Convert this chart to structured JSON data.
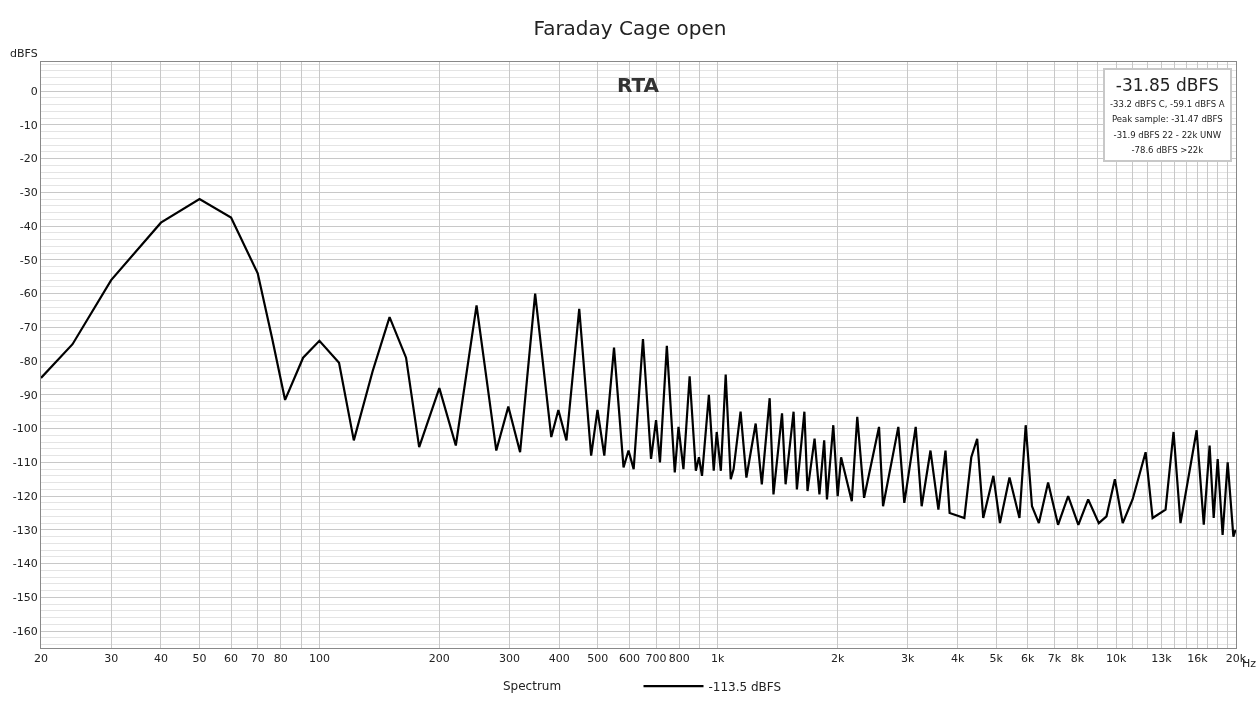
{
  "chart_data": {
    "type": "line",
    "title": "Faraday Cage open",
    "ylabel": "dBFS",
    "annotations": [
      "RTA",
      "-31.85 dBFS",
      "-33.2 dBFS C, -59.1 dBFS A",
      "Peak sample: -31.47 dBFS",
      "-31.9 dBFS 22 - 22k UNW",
      "-78.6 dBFS >22k",
      "Spectrum"
    ],
    "log": "x",
    "grid": true,
    "legend": "bottom",
    "marker": "none",
    "line_style": "solid",
    "xlim": [
      20,
      20000
    ],
    "xticks": [
      20,
      30,
      40,
      50,
      60,
      70,
      80,
      {
        "value": 90,
        "label": null
      },
      100,
      200,
      300,
      400,
      500,
      600,
      700,
      800,
      {
        "value": 900,
        "label": null
      },
      {
        "value": 1000,
        "label": "1k"
      },
      {
        "value": 2000,
        "label": "2k"
      },
      {
        "value": 3000,
        "label": "3k"
      },
      {
        "value": 4000,
        "label": "4k"
      },
      {
        "value": 5000,
        "label": "5k"
      },
      {
        "value": 6000,
        "label": "6k"
      },
      {
        "value": 7000,
        "label": "7k"
      },
      {
        "value": 8000,
        "label": "8k"
      },
      {
        "value": 9000,
        "label": null
      },
      {
        "value": 10000,
        "label": "10k"
      },
      {
        "value": 11000,
        "label": null
      },
      {
        "value": 12000,
        "label": null
      },
      {
        "value": 13000,
        "label": "13k"
      },
      {
        "value": 14000,
        "label": null
      },
      {
        "value": 15000,
        "label": null
      },
      {
        "value": 16000,
        "label": "16k"
      },
      {
        "value": 17000,
        "label": null
      },
      {
        "value": 18000,
        "label": null
      },
      {
        "value": 19000,
        "label": null
      },
      {
        "value": 20000,
        "label": "20k"
      }
    ],
    "xlabel": "Hz",
    "ylim": [
      -165,
      8.6
    ],
    "yticks": [
      0,
      -10,
      -20,
      -30,
      -40,
      -50,
      -60,
      -70,
      -80,
      -90,
      -100,
      -110,
      -120,
      -130,
      -140,
      -150,
      -160
    ],
    "series": [
      {
        "name": "-113.5 dBFS",
        "color": "#000000",
        "x": [
          20,
          24,
          30,
          40,
          50,
          60,
          70,
          76,
          82,
          91,
          100,
          112,
          122,
          136,
          150,
          165,
          178,
          200,
          220,
          248,
          278,
          298,
          319,
          348,
          382,
          398,
          417,
          449,
          481,
          499,
          519,
          549,
          580,
          597,
          615,
          649,
          680,
          700,
          716,
          745,
          780,
          797,
          820,
          850,
          881,
          897,
          913,
          950,
          977,
          994,
          1018,
          1047,
          1078,
          1096,
          1141,
          1180,
          1245,
          1290,
          1350,
          1380,
          1450,
          1480,
          1550,
          1580,
          1650,
          1680,
          1750,
          1800,
          1850,
          1880,
          1950,
          2000,
          2040,
          2170,
          2240,
          2330,
          2540,
          2600,
          2840,
          2940,
          3140,
          3250,
          3420,
          3580,
          3730,
          3820,
          4160,
          4330,
          4480,
          4640,
          4920,
          5110,
          5400,
          5720,
          5930,
          6150,
          6400,
          6750,
          7150,
          7580,
          8040,
          8510,
          9050,
          9460,
          9930,
          10390,
          11000,
          11860,
          12350,
          13310,
          13940,
          14510,
          15930,
          16600,
          17170,
          17580,
          17990,
          18510,
          19060,
          19700,
          19950
        ],
        "values": [
          -85,
          -75,
          -56,
          -39,
          -32,
          -37.5,
          -54,
          -73,
          -91.5,
          -79,
          -74,
          -80.5,
          -103.5,
          -83,
          -67,
          -79,
          -105.5,
          -88,
          -105,
          -63.5,
          -106.5,
          -93.5,
          -107,
          -60,
          -102.5,
          -94.5,
          -103.5,
          -64.5,
          -108,
          -94.5,
          -108,
          -76,
          -111.5,
          -106.5,
          -112,
          -73.5,
          -109,
          -97.5,
          -110,
          -75.5,
          -113,
          -99.5,
          -112,
          -84.5,
          -112.5,
          -108.5,
          -114,
          -90,
          -112.5,
          -101,
          -112.5,
          -84,
          -115,
          -112,
          -95,
          -114.5,
          -98.5,
          -116.5,
          -91,
          -119.5,
          -95.5,
          -116.5,
          -95,
          -118,
          -95,
          -118.5,
          -103,
          -119.5,
          -103.5,
          -121,
          -99,
          -120,
          -108.5,
          -121.5,
          -96.5,
          -120.5,
          -99.5,
          -123,
          -99.5,
          -122,
          -99.5,
          -123,
          -106.5,
          -124,
          -106.5,
          -125,
          -126.5,
          -108.5,
          -103,
          -126.5,
          -114,
          -128,
          -114.5,
          -126.5,
          -99,
          -123,
          -128,
          -116,
          -128.5,
          -120,
          -128.5,
          -121,
          -128,
          -126,
          -115,
          -128,
          -121,
          -107,
          -126.5,
          -124,
          -101,
          -128,
          -100.5,
          -128.5,
          -105,
          -126.5,
          -109,
          -131.5,
          -110,
          -132,
          -130
        ]
      }
    ]
  }
}
